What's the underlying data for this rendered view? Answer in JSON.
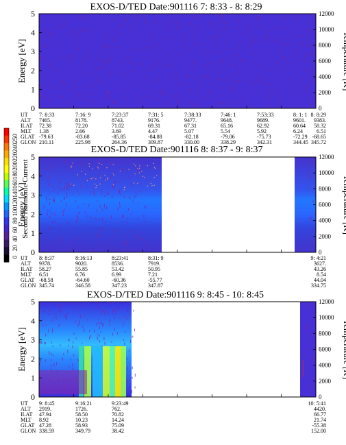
{
  "colorbar": {
    "label": "Second Harmonic Current",
    "ticks": [
      "250",
      "240",
      "220",
      "200",
      "180",
      "160",
      "140",
      "120",
      "100",
      "80",
      "60",
      "40",
      "20",
      "0"
    ],
    "colors": [
      "#ff0000",
      "#ff3300",
      "#ff7700",
      "#ffaa00",
      "#ffdd00",
      "#ffff00",
      "#bbff00",
      "#55ff55",
      "#00ffaa",
      "#00ddff",
      "#0099ff",
      "#2266ff",
      "#3333ee",
      "#4422cc",
      "#552299",
      "#3a1a66",
      "#1a1033",
      "#000000"
    ]
  },
  "chart_data": [
    {
      "type": "heatmap",
      "title": "EXOS-D/TED   Date:901116  7: 8:33 - 8: 8:29",
      "ylabel": "Energy [eV]",
      "ylim": [
        0,
        5
      ],
      "yticks": [
        "5",
        "4",
        "3",
        "2",
        "1",
        "0"
      ],
      "y2label": "Temperature [K]",
      "y2lim": [
        0,
        12000
      ],
      "y2ticks": [
        "12000",
        "10000",
        "8000",
        "6000",
        "4000",
        "2000",
        "0"
      ],
      "coverage": [
        [
          0,
          1
        ]
      ],
      "rows": [
        {
          "label": "UT",
          "values": [
            "7: 8:33",
            "7:16: 9",
            "7:23:37",
            "7:31: 5",
            "7:38:33",
            "7:46: 1",
            "7:53:33",
            "8: 1: 1",
            "8: 8:29"
          ]
        },
        {
          "label": "ALT",
          "values": [
            "7465.",
            "8178.",
            "8743.",
            "9176.",
            "9477.",
            "9648.",
            "9689.",
            "9601.",
            "9383."
          ]
        },
        {
          "label": "ILAT",
          "values": [
            "72.38",
            "72.20",
            "71.02",
            "69.31",
            "67.31",
            "65.16",
            "62.92",
            "60.64",
            "58.32"
          ]
        },
        {
          "label": "MLT",
          "values": [
            "1.38",
            "2.66",
            "3.69",
            "4.47",
            "5.07",
            "5.54",
            "5.92",
            "6.24",
            "6.51"
          ]
        },
        {
          "label": "GLAT",
          "values": [
            "-79.63",
            "-83.68",
            "-85.85",
            "-84.88",
            "-82.18",
            "-79.06",
            "-75.73",
            "-72.29",
            "-68.65"
          ]
        },
        {
          "label": "GLON",
          "values": [
            "210.11",
            "225.98",
            "264.36",
            "309.87",
            "330.00",
            "338.29",
            "342.31",
            "344.45",
            "345.72"
          ]
        }
      ]
    },
    {
      "type": "heatmap",
      "title": "EXOS-D/TED   Date:901116  8: 8:37 - 9: 8:37",
      "ylabel": "Energy [eV]",
      "ylim": [
        0,
        5
      ],
      "yticks": [
        "5",
        "4",
        "3",
        "2",
        "1",
        "0"
      ],
      "y2label": "Temperature [K]",
      "y2lim": [
        0,
        12000
      ],
      "y2ticks": [
        "12000",
        "10000",
        "8000",
        "6000",
        "4000",
        "2000",
        "0"
      ],
      "coverage": [
        [
          0,
          0.39
        ],
        [
          0.97,
          1
        ]
      ],
      "rows": [
        {
          "label": "UT",
          "values": [
            "8: 8:37",
            "8:16:13",
            "8:23:41",
            "8:31: 9",
            "",
            "",
            "",
            "",
            "9: 4:21"
          ]
        },
        {
          "label": "ALT",
          "values": [
            "9378.",
            "9020.",
            "8536.",
            "7919.",
            "",
            "",
            "",
            "",
            "3627."
          ]
        },
        {
          "label": "ILAT",
          "values": [
            "58.27",
            "55.85",
            "53.42",
            "50.95",
            "",
            "",
            "",
            "",
            "43.26"
          ]
        },
        {
          "label": "MLT",
          "values": [
            "6.51",
            "6.76",
            "6.99",
            "7.21",
            "",
            "",
            "",
            "",
            "8.54"
          ]
        },
        {
          "label": "GLAT",
          "values": [
            "-68.58",
            "-64.60",
            "-60.36",
            "-55.77",
            "",
            "",
            "",
            "",
            "44.04"
          ]
        },
        {
          "label": "GLON",
          "values": [
            "345.74",
            "346.58",
            "347.23",
            "347.87",
            "",
            "",
            "",
            "",
            "334.75"
          ]
        }
      ]
    },
    {
      "type": "heatmap",
      "title": "EXOS-D/TED   Date:901116  9: 8:45 - 10: 8:45",
      "ylabel": "Energy [eV]",
      "ylim": [
        0,
        5
      ],
      "yticks": [
        "5",
        "4",
        "3",
        "2",
        "1",
        "0"
      ],
      "y2label": "Temperature [K]",
      "y2lim": [
        0,
        12000
      ],
      "y2ticks": [
        "12000",
        "10000",
        "8000",
        "6000",
        "4000",
        "2000",
        "0"
      ],
      "coverage": [
        [
          0,
          0.35
        ],
        [
          0.96,
          1
        ]
      ],
      "rows": [
        {
          "label": "UT",
          "values": [
            "9: 8:45",
            "9:16:21",
            "9:23:49",
            "",
            "",
            "",
            "",
            "",
            "10: 5:41"
          ]
        },
        {
          "label": "ALT",
          "values": [
            "2919.",
            "1726.",
            "762.",
            "",
            "",
            "",
            "",
            "",
            "4420."
          ]
        },
        {
          "label": "ILAT",
          "values": [
            "47.94",
            "58.50",
            "70.82",
            "",
            "",
            "",
            "",
            "",
            "66.77"
          ]
        },
        {
          "label": "MLT",
          "values": [
            "8.92",
            "10.23",
            "14.24",
            "",
            "",
            "",
            "",
            "",
            "21.74"
          ]
        },
        {
          "label": "GLAT",
          "values": [
            "47.28",
            "58.93",
            "75.09",
            "",
            "",
            "",
            "",
            "",
            "-55.38"
          ]
        },
        {
          "label": "GLON",
          "values": [
            "338.59",
            "349.79",
            "38.42",
            "",
            "",
            "",
            "",
            "",
            "152.00"
          ]
        }
      ]
    }
  ]
}
